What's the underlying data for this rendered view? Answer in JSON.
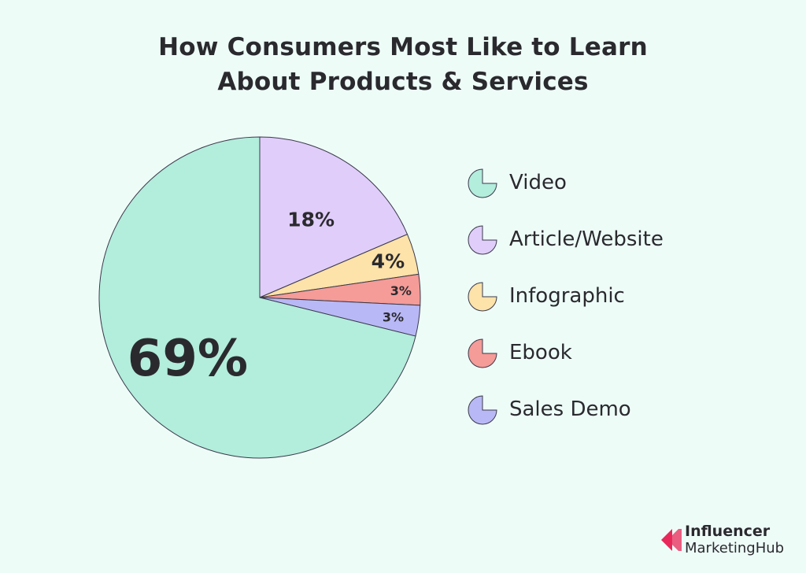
{
  "title_line1": "How Consumers Most Like to Learn",
  "title_line2": "About Products & Services",
  "chart_data": {
    "type": "pie",
    "title": "How Consumers Most Like to Learn About Products & Services",
    "slices": [
      {
        "label": "Video",
        "value": 69,
        "display": "69%",
        "color": "#b3eddc"
      },
      {
        "label": "Article/Website",
        "value": 18,
        "display": "18%",
        "color": "#e0cdfa"
      },
      {
        "label": "Infographic",
        "value": 4,
        "display": "4%",
        "color": "#fde2a9"
      },
      {
        "label": "Ebook",
        "value": 3,
        "display": "3%",
        "color": "#f59b98"
      },
      {
        "label": "Sales Demo",
        "value": 3,
        "display": "3%",
        "color": "#b9b8f6"
      }
    ],
    "legend_placement": "right"
  },
  "legend": [
    {
      "label": "Video",
      "color": "#b3eddc"
    },
    {
      "label": "Article/Website",
      "color": "#e0cdfa"
    },
    {
      "label": "Infographic",
      "color": "#fde2a9"
    },
    {
      "label": "Ebook",
      "color": "#f59b98"
    },
    {
      "label": "Sales Demo",
      "color": "#b9b8f6"
    }
  ],
  "logo": {
    "line1": "Influencer",
    "line2": "MarketingHub",
    "color": "#e8285a"
  }
}
